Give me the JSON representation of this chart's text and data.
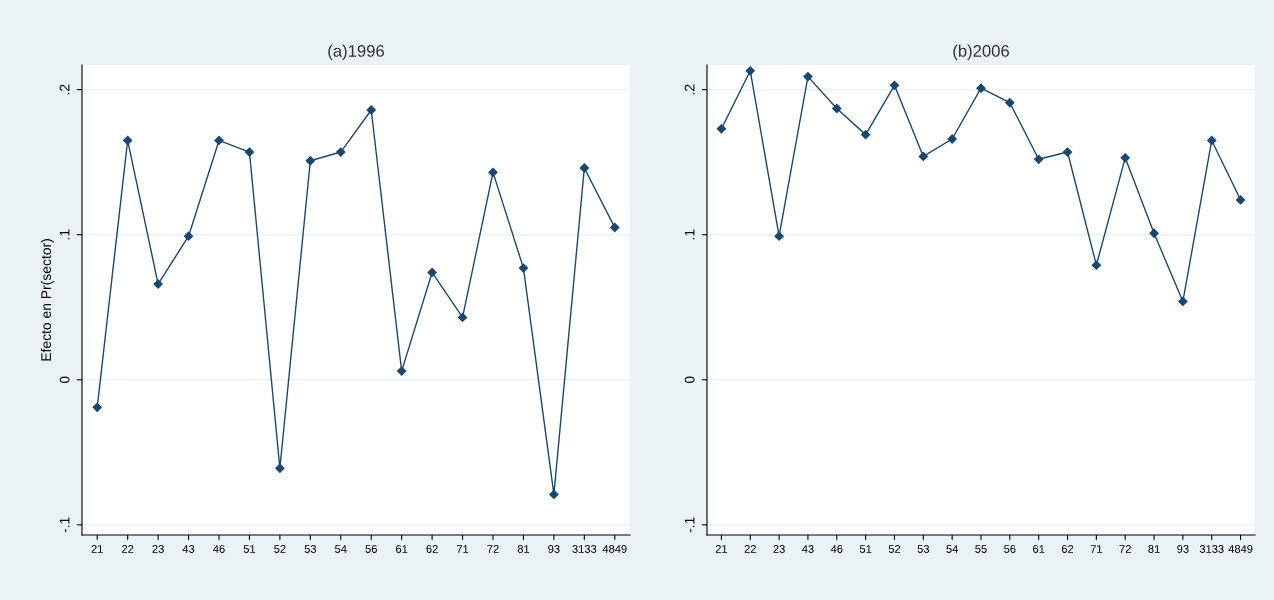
{
  "chart_data": [
    {
      "type": "line",
      "title": "(a)1996",
      "ylabel": "Efecto en Pr(sector)",
      "categories": [
        "21",
        "22",
        "23",
        "43",
        "46",
        "51",
        "52",
        "53",
        "54",
        "56",
        "61",
        "62",
        "71",
        "72",
        "81",
        "93",
        "3133",
        "4849"
      ],
      "series": [
        {
          "color": "#1a476f",
          "values": [
            -0.019,
            0.165,
            0.066,
            0.099,
            0.165,
            0.157,
            -0.061,
            0.151,
            0.157,
            0.186,
            0.006,
            0.074,
            0.043,
            0.143,
            0.077,
            -0.079,
            0.146,
            0.105
          ]
        }
      ],
      "ylim": [
        -0.107,
        0.217
      ],
      "yticks": [
        {
          "value": -0.1,
          "label": "-.1"
        },
        {
          "value": 0,
          "label": "0"
        },
        {
          "value": 0.1,
          "label": ".1"
        },
        {
          "value": 0.2,
          "label": ".2"
        }
      ],
      "grid": "y",
      "marker": "diamond",
      "line_style": "solid"
    },
    {
      "type": "line",
      "title": "(b)2006",
      "categories": [
        "21",
        "22",
        "23",
        "43",
        "46",
        "51",
        "52",
        "53",
        "54",
        "55",
        "56",
        "61",
        "62",
        "71",
        "72",
        "81",
        "93",
        "3133",
        "4849"
      ],
      "series": [
        {
          "color": "#1a476f",
          "values": [
            0.173,
            0.213,
            0.099,
            0.209,
            0.187,
            0.169,
            0.203,
            0.154,
            0.166,
            0.201,
            0.191,
            0.152,
            0.157,
            0.079,
            0.153,
            0.101,
            0.054,
            0.165,
            0.124
          ]
        }
      ],
      "ylim": [
        -0.107,
        0.217
      ],
      "yticks": [
        {
          "value": -0.1,
          "label": "-.1"
        },
        {
          "value": 0,
          "label": "0"
        },
        {
          "value": 0.1,
          "label": ".1"
        },
        {
          "value": 0.2,
          "label": ".2"
        }
      ],
      "grid": "y",
      "marker": "diamond",
      "line_style": "solid"
    }
  ]
}
